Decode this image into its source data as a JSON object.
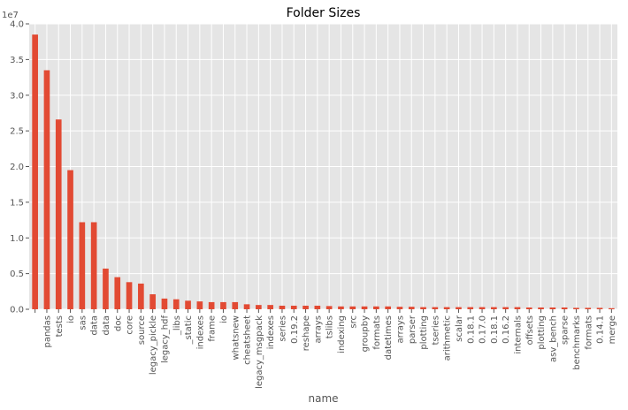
{
  "chart_data": {
    "type": "bar",
    "title": "Folder Sizes",
    "xlabel": "name",
    "ylabel": "",
    "y_offset_label": "1e7",
    "ylim": [
      0,
      4.0
    ],
    "y_scale_multiplier": 10000000,
    "y_ticks": [
      "0.0",
      "0.5",
      "1.0",
      "1.5",
      "2.0",
      "2.5",
      "3.0",
      "3.5",
      "4.0"
    ],
    "grid": true,
    "legend": "none",
    "colors": {
      "bar": "#E24A33",
      "background": "#E5E5E5",
      "grid": "#FFFFFF",
      "text": "#555555"
    },
    "categories": [
      "",
      "pandas",
      "tests",
      "io",
      "sas",
      "data",
      "data",
      "doc",
      "core",
      "source",
      "legacy_pickle",
      "legacy_hdf",
      "_libs",
      "_static",
      "indexes",
      "frame",
      "io",
      "whatsnew",
      "cheatsheet",
      "legacy_msgpack",
      "indexes",
      "series",
      "0.19.2",
      "reshape",
      "arrays",
      "tslibs",
      "indexing",
      "src",
      "groupby",
      "formats",
      "datetimes",
      "arrays",
      "parser",
      "plotting",
      "tseries",
      "arithmetic",
      "scalar",
      "0.18.1",
      "0.17.0",
      "0.18.1",
      "0.16.2",
      "internals",
      "offsets",
      "plotting",
      "asv_bench",
      "sparse",
      "benchmarks",
      "formats",
      "0.14.1",
      "merge"
    ],
    "values": [
      3.85,
      3.35,
      2.66,
      1.95,
      1.22,
      1.22,
      0.57,
      0.45,
      0.38,
      0.36,
      0.21,
      0.15,
      0.14,
      0.12,
      0.11,
      0.1,
      0.1,
      0.1,
      0.07,
      0.06,
      0.06,
      0.05,
      0.05,
      0.05,
      0.05,
      0.045,
      0.04,
      0.04,
      0.04,
      0.04,
      0.04,
      0.035,
      0.035,
      0.03,
      0.03,
      0.03,
      0.03,
      0.03,
      0.03,
      0.03,
      0.03,
      0.03,
      0.025,
      0.025,
      0.025,
      0.025,
      0.02,
      0.02,
      0.02,
      0.015
    ]
  }
}
